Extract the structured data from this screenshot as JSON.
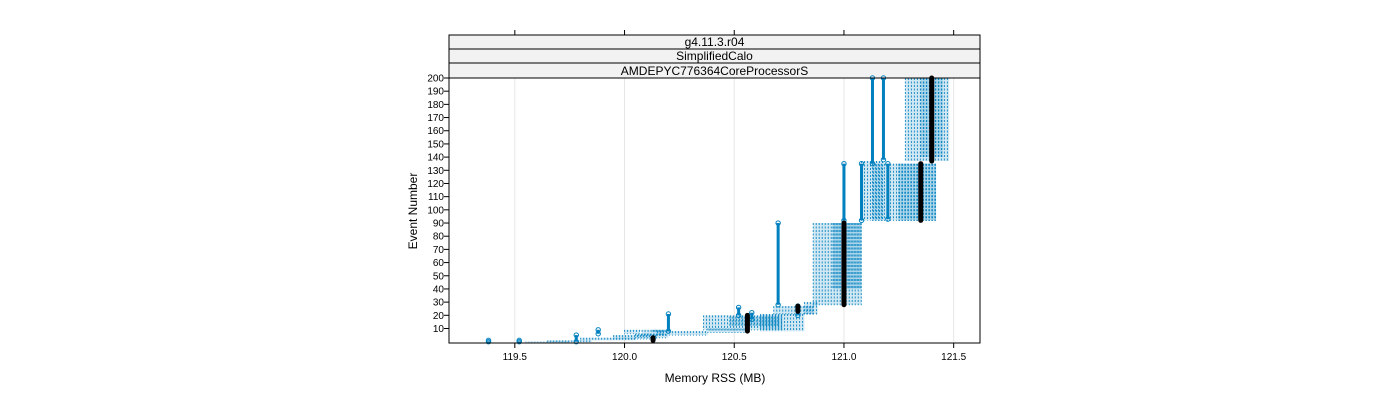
{
  "chart_data": {
    "type": "scatter",
    "strips": [
      "g4.11.3.r04",
      "SimplifiedCalo",
      "AMDEPYC776364CoreProcessorS"
    ],
    "xlabel": "Memory RSS (MB)",
    "ylabel": "Event Number",
    "xlim": [
      119.2,
      121.62
    ],
    "ylim": [
      -1,
      200
    ],
    "x_ticks": [
      119.5,
      120.0,
      120.5,
      121.0,
      121.5
    ],
    "x_tick_labels": [
      "119.5",
      "120.0",
      "120.5",
      "121.0",
      "121.5"
    ],
    "y_ticks": [
      10,
      20,
      30,
      40,
      50,
      60,
      70,
      80,
      90,
      100,
      110,
      120,
      130,
      140,
      150,
      160,
      170,
      180,
      190,
      200
    ],
    "y_tick_labels": [
      "10",
      "20",
      "30",
      "40",
      "50",
      "60",
      "70",
      "80",
      "90",
      "100",
      "110",
      "120",
      "130",
      "140",
      "150",
      "160",
      "170",
      "180",
      "190",
      "200"
    ],
    "grid": "vertical",
    "series": [
      {
        "role": "runs",
        "color": "#0080bf",
        "segments": [
          {
            "x": [
              119.38,
              119.38
            ],
            "y": [
              0,
              1
            ]
          },
          {
            "x": [
              119.52,
              119.52
            ],
            "y": [
              0,
              1
            ]
          },
          {
            "x": [
              119.55,
              119.75
            ],
            "y": [
              0,
              0
            ]
          },
          {
            "x": [
              119.65,
              119.85
            ],
            "y": [
              0,
              1
            ]
          },
          {
            "x": [
              119.78,
              119.78
            ],
            "y": [
              0,
              5
            ]
          },
          {
            "x": [
              119.8,
              120.05
            ],
            "y": [
              1,
              3
            ]
          },
          {
            "x": [
              119.88,
              119.88
            ],
            "y": [
              6,
              9
            ]
          },
          {
            "x": [
              119.95,
              120.15
            ],
            "y": [
              2,
              5
            ]
          },
          {
            "x": [
              120.0,
              120.07
            ],
            "y": [
              6,
              9
            ]
          },
          {
            "x": [
              120.05,
              120.2
            ],
            "y": [
              3,
              6
            ]
          },
          {
            "x": [
              120.08,
              120.18
            ],
            "y": [
              5,
              9
            ]
          },
          {
            "x": [
              120.13,
              120.2
            ],
            "y": [
              7,
              9
            ]
          },
          {
            "x": [
              120.15,
              120.38
            ],
            "y": [
              5,
              8
            ]
          },
          {
            "x": [
              120.2,
              120.2
            ],
            "y": [
              8,
              21
            ]
          },
          {
            "x": [
              120.36,
              120.72
            ],
            "y": [
              9,
              20
            ]
          },
          {
            "x": [
              120.38,
              120.55
            ],
            "y": [
              7,
              10
            ]
          },
          {
            "x": [
              120.48,
              120.7
            ],
            "y": [
              12,
              19
            ]
          },
          {
            "x": [
              120.52,
              120.52
            ],
            "y": [
              20,
              26
            ]
          },
          {
            "x": [
              120.58,
              120.58
            ],
            "y": [
              17,
              22
            ]
          },
          {
            "x": [
              120.62,
              120.82
            ],
            "y": [
              8,
              21
            ]
          },
          {
            "x": [
              120.68,
              120.86
            ],
            "y": [
              21,
              27
            ]
          },
          {
            "x": [
              120.7,
              120.7
            ],
            "y": [
              28,
              90
            ]
          },
          {
            "x": [
              120.79,
              120.79
            ],
            "y": [
              20,
              27
            ]
          },
          {
            "x": [
              120.82,
              120.88
            ],
            "y": [
              21,
              30
            ]
          },
          {
            "x": [
              120.86,
              121.08
            ],
            "y": [
              28,
              90
            ]
          },
          {
            "x": [
              120.95,
              121.08
            ],
            "y": [
              40,
              90
            ]
          },
          {
            "x": [
              121.0,
              121.0
            ],
            "y": [
              92,
              135
            ]
          },
          {
            "x": [
              121.08,
              121.08
            ],
            "y": [
              92,
              135
            ]
          },
          {
            "x": [
              121.13,
              121.13
            ],
            "y": [
              135,
              200
            ]
          },
          {
            "x": [
              121.08,
              121.18
            ],
            "y": [
              92,
              137
            ]
          },
          {
            "x": [
              121.13,
              121.42
            ],
            "y": [
              92,
              135
            ]
          },
          {
            "x": [
              121.18,
              121.18
            ],
            "y": [
              138,
              200
            ]
          },
          {
            "x": [
              121.2,
              121.2
            ],
            "y": [
              93,
              135
            ]
          },
          {
            "x": [
              121.25,
              121.42
            ],
            "y": [
              92,
              135
            ]
          },
          {
            "x": [
              121.28,
              121.48
            ],
            "y": [
              137,
              200
            ]
          },
          {
            "x": [
              121.35,
              121.45
            ],
            "y": [
              140,
              200
            ]
          }
        ]
      },
      {
        "role": "median",
        "color": "#000000",
        "segments": [
          {
            "x": [
              120.13,
              120.13
            ],
            "y": [
              1,
              3
            ]
          },
          {
            "x": [
              120.56,
              120.56
            ],
            "y": [
              8,
              20
            ]
          },
          {
            "x": [
              120.79,
              120.79
            ],
            "y": [
              23,
              27
            ]
          },
          {
            "x": [
              121.0,
              121.0
            ],
            "y": [
              28,
              90
            ]
          },
          {
            "x": [
              121.35,
              121.35
            ],
            "y": [
              92,
              135
            ]
          },
          {
            "x": [
              121.4,
              121.4
            ],
            "y": [
              137,
              200
            ]
          }
        ]
      }
    ]
  }
}
